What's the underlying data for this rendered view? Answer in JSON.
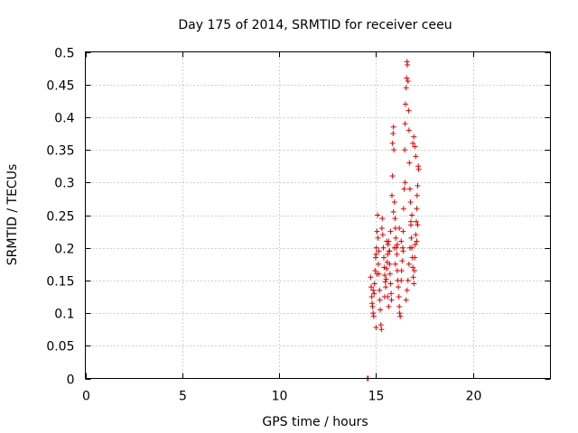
{
  "chart_data": {
    "type": "scatter",
    "title": "Day 175 of 2014, SRMTID for receiver ceeu",
    "xlabel": "GPS time / hours",
    "ylabel": "SRMTID / TECUs",
    "xlim": [
      0,
      24
    ],
    "ylim": [
      0,
      0.5
    ],
    "xticks": [
      0,
      5,
      10,
      15,
      20
    ],
    "yticks": [
      0,
      0.05,
      0.1,
      0.15,
      0.2,
      0.25,
      0.3,
      0.35,
      0.4,
      0.45,
      0.5
    ],
    "grid": true,
    "marker": "+",
    "colors": {
      "series": "#e00000",
      "grid": "#a0a0a0",
      "axis": "#000000"
    },
    "series": [
      {
        "name": "SRMTID",
        "points": [
          [
            14.55,
            0.0
          ],
          [
            14.6,
            0.0
          ],
          [
            14.72,
            0.155
          ],
          [
            14.75,
            0.14
          ],
          [
            14.78,
            0.125
          ],
          [
            14.8,
            0.115
          ],
          [
            14.82,
            0.11
          ],
          [
            14.85,
            0.1
          ],
          [
            14.88,
            0.095
          ],
          [
            14.9,
            0.13
          ],
          [
            14.92,
            0.145
          ],
          [
            14.95,
            0.165
          ],
          [
            14.98,
            0.185
          ],
          [
            15.0,
            0.19
          ],
          [
            15.0,
            0.078
          ],
          [
            15.02,
            0.2
          ],
          [
            15.05,
            0.225
          ],
          [
            15.08,
            0.25
          ],
          [
            15.1,
            0.215
          ],
          [
            15.12,
            0.175
          ],
          [
            15.15,
            0.16
          ],
          [
            15.18,
            0.135
          ],
          [
            15.2,
            0.12
          ],
          [
            15.22,
            0.105
          ],
          [
            15.25,
            0.082
          ],
          [
            15.28,
            0.075
          ],
          [
            15.3,
            0.23
          ],
          [
            15.32,
            0.245
          ],
          [
            15.35,
            0.22
          ],
          [
            15.38,
            0.2
          ],
          [
            15.4,
            0.185
          ],
          [
            15.42,
            0.17
          ],
          [
            15.45,
            0.158
          ],
          [
            15.48,
            0.148
          ],
          [
            15.5,
            0.14
          ],
          [
            15.52,
            0.152
          ],
          [
            15.55,
            0.168
          ],
          [
            15.58,
            0.178
          ],
          [
            15.6,
            0.19
          ],
          [
            15.62,
            0.205
          ],
          [
            15.65,
            0.21
          ],
          [
            15.68,
            0.195
          ],
          [
            15.7,
            0.175
          ],
          [
            15.72,
            0.16
          ],
          [
            15.75,
            0.145
          ],
          [
            15.78,
            0.13
          ],
          [
            15.8,
            0.12
          ],
          [
            15.82,
            0.28
          ],
          [
            15.85,
            0.31
          ],
          [
            15.85,
            0.36
          ],
          [
            15.88,
            0.375
          ],
          [
            15.9,
            0.385
          ],
          [
            15.92,
            0.35
          ],
          [
            15.95,
            0.27
          ],
          [
            15.98,
            0.245
          ],
          [
            16.0,
            0.23
          ],
          [
            16.02,
            0.215
          ],
          [
            16.05,
            0.2
          ],
          [
            16.08,
            0.19
          ],
          [
            16.1,
            0.165
          ],
          [
            16.12,
            0.15
          ],
          [
            16.15,
            0.14
          ],
          [
            16.18,
            0.125
          ],
          [
            16.2,
            0.11
          ],
          [
            16.22,
            0.1
          ],
          [
            16.25,
            0.095
          ],
          [
            16.3,
            0.15
          ],
          [
            16.32,
            0.165
          ],
          [
            16.35,
            0.18
          ],
          [
            16.38,
            0.2
          ],
          [
            16.4,
            0.225
          ],
          [
            16.42,
            0.26
          ],
          [
            16.45,
            0.29
          ],
          [
            16.48,
            0.35
          ],
          [
            16.5,
            0.39
          ],
          [
            16.52,
            0.42
          ],
          [
            16.55,
            0.445
          ],
          [
            16.58,
            0.46
          ],
          [
            16.6,
            0.485
          ],
          [
            16.62,
            0.48
          ],
          [
            16.65,
            0.455
          ],
          [
            16.68,
            0.41
          ],
          [
            16.7,
            0.38
          ],
          [
            16.72,
            0.33
          ],
          [
            16.75,
            0.29
          ],
          [
            16.78,
            0.27
          ],
          [
            16.8,
            0.24
          ],
          [
            16.82,
            0.215
          ],
          [
            16.85,
            0.2
          ],
          [
            16.88,
            0.185
          ],
          [
            16.9,
            0.17
          ],
          [
            16.92,
            0.155
          ],
          [
            16.95,
            0.145
          ],
          [
            16.98,
            0.165
          ],
          [
            17.0,
            0.185
          ],
          [
            17.02,
            0.205
          ],
          [
            17.05,
            0.22
          ],
          [
            17.08,
            0.24
          ],
          [
            17.1,
            0.26
          ],
          [
            17.12,
            0.28
          ],
          [
            17.15,
            0.295
          ],
          [
            17.18,
            0.325
          ],
          [
            17.2,
            0.32
          ],
          [
            16.55,
            0.12
          ],
          [
            16.6,
            0.135
          ],
          [
            16.65,
            0.15
          ],
          [
            16.7,
            0.175
          ],
          [
            16.75,
            0.2
          ],
          [
            16.8,
            0.235
          ],
          [
            16.85,
            0.25
          ],
          [
            16.9,
            0.36
          ],
          [
            16.95,
            0.37
          ],
          [
            17.0,
            0.355
          ],
          [
            17.05,
            0.34
          ],
          [
            15.6,
            0.125
          ],
          [
            15.65,
            0.11
          ],
          [
            15.7,
            0.195
          ],
          [
            15.9,
            0.255
          ],
          [
            16.0,
            0.175
          ],
          [
            16.1,
            0.205
          ],
          [
            16.2,
            0.23
          ],
          [
            16.3,
            0.21
          ],
          [
            16.4,
            0.195
          ],
          [
            16.5,
            0.3
          ],
          [
            17.1,
            0.21
          ],
          [
            17.15,
            0.235
          ],
          [
            14.85,
            0.135
          ],
          [
            15.05,
            0.16
          ],
          [
            15.15,
            0.195
          ],
          [
            15.45,
            0.125
          ],
          [
            15.55,
            0.21
          ],
          [
            15.75,
            0.225
          ],
          [
            15.95,
            0.2
          ]
        ]
      }
    ]
  }
}
